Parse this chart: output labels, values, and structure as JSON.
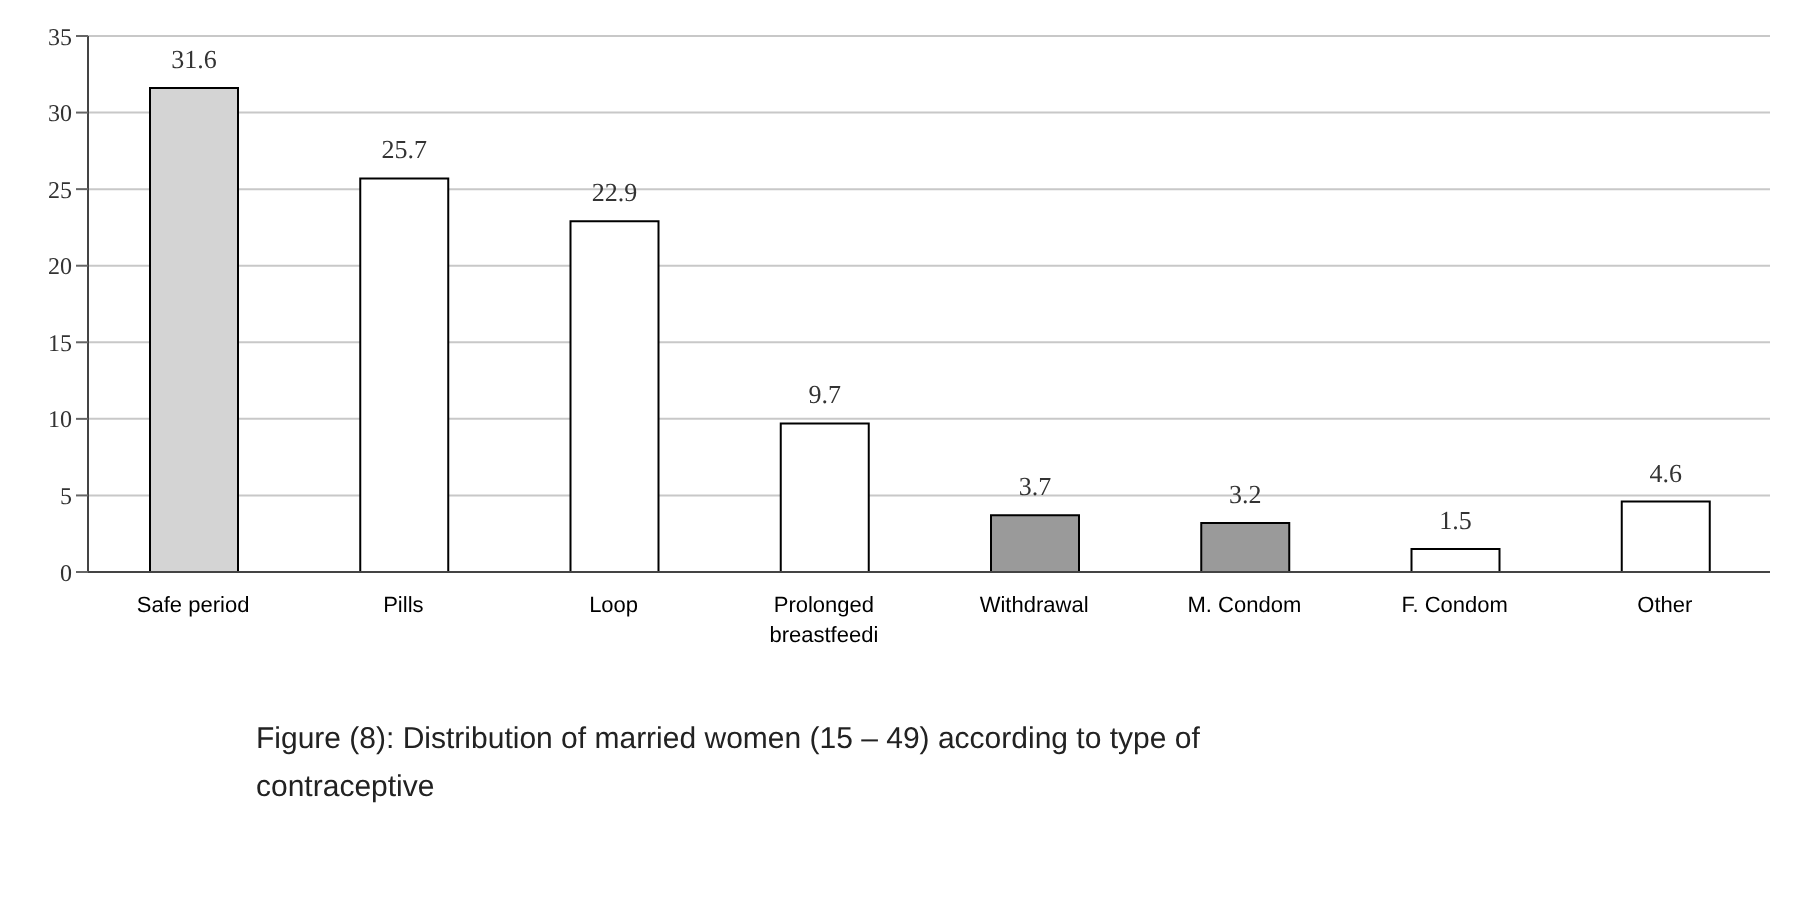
{
  "chart_data": {
    "type": "bar",
    "categories": [
      "Safe period",
      "Pills",
      "Loop",
      "Prolonged breastfeedi",
      "Withdrawal",
      "M. Condom",
      "F. Condom",
      "Other"
    ],
    "values": [
      31.6,
      25.7,
      22.9,
      9.7,
      3.7,
      3.2,
      1.5,
      4.6
    ],
    "colors": [
      "#d4d4d4",
      "#ffffff",
      "#ffffff",
      "#ffffff",
      "#9a9a9a",
      "#9a9a9a",
      "#ffffff",
      "#ffffff"
    ],
    "ylim": [
      0,
      35
    ],
    "yticks": [
      0,
      5,
      10,
      15,
      20,
      25,
      30,
      35
    ],
    "grid": "y",
    "data_labels": true,
    "annotations": [
      "Figure (8): Distribution of married women (15 – 49) according to type of contraceptive"
    ]
  }
}
